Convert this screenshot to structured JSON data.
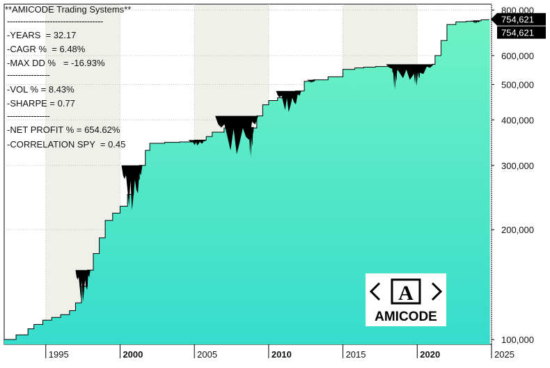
{
  "title": "**AMICODE Trading Systems**",
  "separators": [
    "------------------------------------",
    "----------------",
    "----------------",
    "----------------"
  ],
  "stats": [
    "-YEARS  = 32.17",
    "-CAGR %  = 6.48%",
    "-MAX DD %   = -16.93%",
    "-VOL % = 8.43%",
    "-SHARPE = 0.77",
    "-NET PROFIT % = 654.62%",
    "-CORRELATION SPY  = 0.45"
  ],
  "logo_text": "AMICODE",
  "logo_glyph": "A",
  "colors": {
    "fill_top": "#6ff2c4",
    "fill_bottom": "#36dccc",
    "drawdown": "#000000",
    "grid": "#b5c8b5",
    "band": "#f0f0ea"
  },
  "chart_data": {
    "type": "area",
    "yscale": "log",
    "ylim": [
      97000,
      830000
    ],
    "xlim": [
      1992.2,
      2025.0
    ],
    "xticks": [
      {
        "value": 1995,
        "label": "1995",
        "bold": false
      },
      {
        "value": 2000,
        "label": "2000",
        "bold": true
      },
      {
        "value": 2005,
        "label": "2005",
        "bold": false
      },
      {
        "value": 2010,
        "label": "2010",
        "bold": true
      },
      {
        "value": 2015,
        "label": "2015",
        "bold": false
      },
      {
        "value": 2020,
        "label": "2020",
        "bold": true
      },
      {
        "value": 2025,
        "label": "2025",
        "bold": false
      }
    ],
    "yticks": [
      {
        "value": 100000,
        "label": "100,000"
      },
      {
        "value": 200000,
        "label": "200,000"
      },
      {
        "value": 300000,
        "label": "300,000"
      },
      {
        "value": 400000,
        "label": "400,000"
      },
      {
        "value": 500000,
        "label": "500,000"
      },
      {
        "value": 600000,
        "label": "600,000"
      },
      {
        "value": 800000,
        "label": "800,000"
      }
    ],
    "last_value_labels": [
      "754,621",
      "754,621"
    ],
    "equity_x": [
      1992.2,
      1993.0,
      1993.8,
      1994.2,
      1994.8,
      1995.4,
      1996.0,
      1996.6,
      1997.0,
      1997.4,
      1997.8,
      1998.2,
      1998.6,
      1999.0,
      1999.5,
      2000.0,
      2000.5,
      2000.9,
      2001.3,
      2001.7,
      2002.0,
      2003.0,
      2004.0,
      2005.0,
      2005.8,
      2006.2,
      2007.0,
      2008.0,
      2008.8,
      2009.2,
      2009.6,
      2010.0,
      2010.6,
      2011.2,
      2011.8,
      2012.4,
      2013.0,
      2014.0,
      2015.0,
      2015.8,
      2016.4,
      2017.2,
      2018.0,
      2019.0,
      2020.0,
      2021.0,
      2021.2,
      2021.6,
      2022.0,
      2022.6,
      2023.3,
      2023.8,
      2024.3,
      2024.8
    ],
    "equity_y": [
      100000,
      103000,
      107000,
      110000,
      113000,
      115000,
      117000,
      120000,
      126000,
      140000,
      155000,
      172000,
      190000,
      212000,
      222000,
      232000,
      250000,
      275000,
      300000,
      330000,
      345000,
      347000,
      348000,
      352000,
      360000,
      370000,
      380000,
      382000,
      380000,
      410000,
      440000,
      452000,
      460000,
      470000,
      480000,
      510000,
      515000,
      525000,
      550000,
      555000,
      558000,
      560000,
      561000,
      562000,
      563000,
      568000,
      600000,
      660000,
      730000,
      742000,
      745000,
      748000,
      752000,
      754621
    ],
    "drawdown": [
      {
        "x0": 1997.0,
        "x1": 1998.0,
        "low": 127000
      },
      {
        "x0": 2000.1,
        "x1": 2001.5,
        "low": 226000
      },
      {
        "x0": 2004.6,
        "x1": 2005.8,
        "low": 340000
      },
      {
        "x0": 2006.4,
        "x1": 2009.3,
        "low": 322000
      },
      {
        "x0": 2008.6,
        "x1": 2009.0,
        "low": 315000
      },
      {
        "x0": 2010.5,
        "x1": 2012.2,
        "low": 420000
      },
      {
        "x0": 2012.6,
        "x1": 2013.2,
        "low": 505000
      },
      {
        "x0": 2017.9,
        "x1": 2021.1,
        "low": 515000
      },
      {
        "x0": 2018.3,
        "x1": 2018.7,
        "low": 482000
      },
      {
        "x0": 2019.6,
        "x1": 2020.3,
        "low": 495000
      },
      {
        "x0": 2023.6,
        "x1": 2024.3,
        "low": 735000
      }
    ]
  }
}
